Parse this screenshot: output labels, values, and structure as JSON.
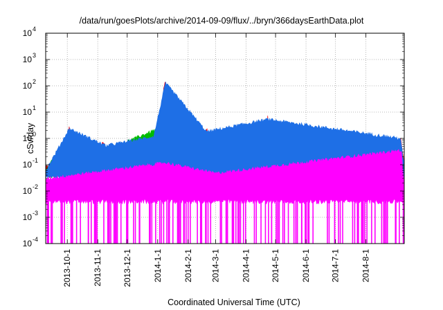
{
  "chart_data": {
    "type": "line",
    "title": "/data/run/goesPlots/archive/2014-09-09/flux/../bryn/366daysEarthData.plot",
    "xlabel": "Coordinated Universal Time (UTC)",
    "ylabel": "cSv/day",
    "yscale": "log",
    "ylim": [
      0.0001,
      10000
    ],
    "xlim": [
      "2013-09-09",
      "2014-09-09"
    ],
    "grid": true,
    "y_ticks": [
      {
        "base": "10",
        "exp": "-4"
      },
      {
        "base": "10",
        "exp": "-3"
      },
      {
        "base": "10",
        "exp": "-2"
      },
      {
        "base": "10",
        "exp": "-1"
      },
      {
        "base": "10",
        "exp": "0"
      },
      {
        "base": "10",
        "exp": "1"
      },
      {
        "base": "10",
        "exp": "2"
      },
      {
        "base": "10",
        "exp": "3"
      },
      {
        "base": "10",
        "exp": "4"
      }
    ],
    "x_ticks": [
      "2013-10-1",
      "2013-11-1",
      "2013-12-1",
      "2014-1-1",
      "2014-2-1",
      "2014-3-1",
      "2014-4-1",
      "2014-5-1",
      "2014-6-1",
      "2014-7-1",
      "2014-8-1"
    ],
    "colors": {
      "series_1": "#ff0000",
      "series_2": "#00bb00",
      "series_3": "#1e6fe6",
      "series_4": "#ff00ff",
      "grid": "#a0a0a0",
      "frame": "#000000"
    },
    "series": [
      {
        "color": "#ff0000",
        "baseline": 0.075,
        "x": [
          "2013-09-09",
          "2013-10-01",
          "2013-10-03",
          "2013-10-07",
          "2013-11-07",
          "2013-11-09",
          "2013-11-12",
          "2013-11-19",
          "2013-12-28",
          "2014-01-01",
          "2014-01-04",
          "2014-01-07",
          "2014-01-09",
          "2014-01-12",
          "2014-02-16",
          "2014-02-20",
          "2014-02-25",
          "2014-02-27",
          "2014-03-01",
          "2014-03-05",
          "2014-03-10",
          "2014-03-29",
          "2014-04-19",
          "2014-04-23",
          "2014-04-27",
          "2014-09-01",
          "2014-09-05",
          "2014-09-09"
        ],
        "values": [
          0.075,
          0.075,
          2.8,
          0.08,
          0.6,
          0.3,
          0.25,
          0.2,
          1.5,
          0.08,
          0.6,
          60,
          140,
          0.08,
          0.2,
          2.2,
          0.08,
          0.5,
          2.2,
          0.3,
          0.08,
          0.15,
          0.08,
          6,
          0.08,
          0.08,
          1.0,
          0.1
        ]
      },
      {
        "color": "#00bb00",
        "baseline": 0.055,
        "x": [
          "2013-09-09",
          "2013-10-03",
          "2013-11-09",
          "2014-01-08",
          "2014-01-09",
          "2014-02-20",
          "2014-03-01",
          "2014-04-23",
          "2014-09-05",
          "2014-09-09"
        ],
        "values": [
          0.055,
          1.2,
          0.3,
          2.5,
          60,
          0.8,
          1.2,
          2.5,
          0.7,
          0.08
        ]
      },
      {
        "color": "#1e6fe6",
        "baseline": 0.05,
        "x": [
          "2013-09-09",
          "2013-10-03",
          "2013-11-09",
          "2013-12-28",
          "2014-01-09",
          "2014-02-20",
          "2014-03-01",
          "2014-04-23",
          "2014-09-05",
          "2014-09-09"
        ],
        "values": [
          0.05,
          2.0,
          0.45,
          1.0,
          110,
          1.5,
          1.8,
          4.5,
          0.85,
          0.08
        ]
      },
      {
        "color": "#ff00ff",
        "baseline": 0.025,
        "floor": 0.0001,
        "x": [
          "2013-09-09",
          "2014-01-09",
          "2014-03-01",
          "2014-09-06",
          "2014-09-09"
        ],
        "values": [
          0.025,
          0.1,
          0.04,
          0.3,
          0.01
        ]
      }
    ]
  }
}
